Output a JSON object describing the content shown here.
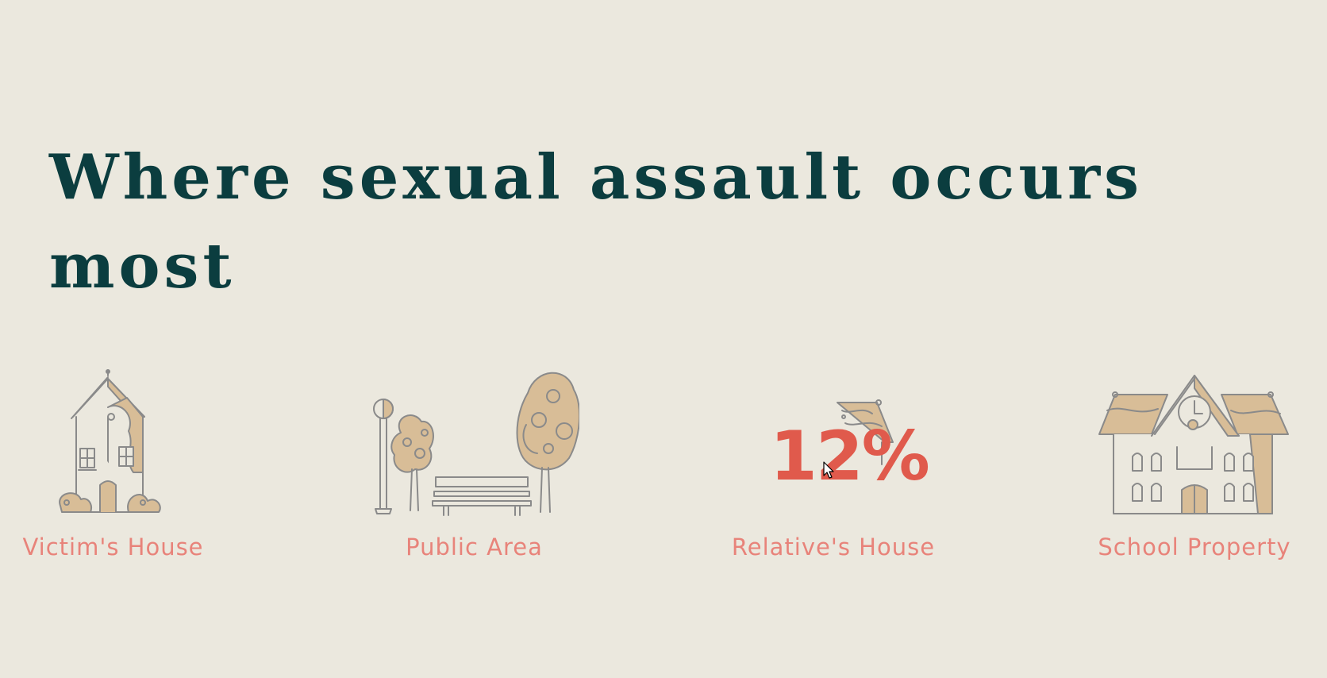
{
  "heading": "Where sexual assault occurs most",
  "locations": [
    {
      "label": "Victim's House",
      "icon": "house-icon"
    },
    {
      "label": "Public Area",
      "icon": "park-icon"
    },
    {
      "label": "Relative's House",
      "icon": "relative-house-icon",
      "percent": "12%"
    },
    {
      "label": "School Property",
      "icon": "school-icon"
    }
  ],
  "colors": {
    "background": "#ebe8de",
    "heading": "#0b3d3f",
    "label": "#e8837a",
    "percent": "#e05a4c",
    "illustration_fill": "#d8bd97",
    "illustration_stroke": "#8a8a8a"
  }
}
